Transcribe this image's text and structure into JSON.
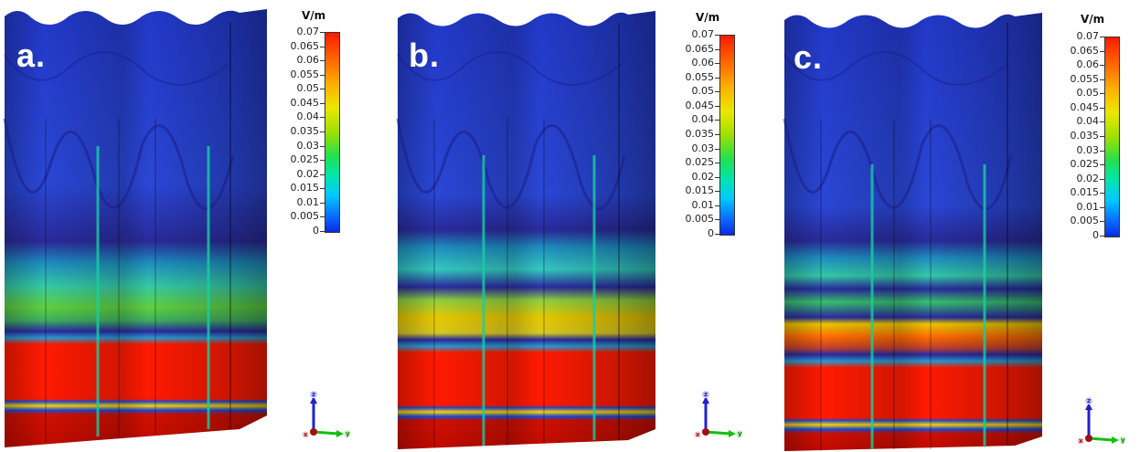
{
  "panels": [
    {
      "label": "a.",
      "unit": "V/m",
      "ticks": [
        "0.07",
        "0.065",
        "0.06",
        "0.055",
        "0.05",
        "0.045",
        "0.04",
        "0.035",
        "0.03",
        "0.025",
        "0.02",
        "0.015",
        "0.01",
        "0.005",
        "0"
      ]
    },
    {
      "label": "b.",
      "unit": "V/m",
      "ticks": [
        "0.07",
        "0.065",
        "0.06",
        "0.055",
        "0.05",
        "0.045",
        "0.04",
        "0.035",
        "0.03",
        "0.025",
        "0.02",
        "0.015",
        "0.01",
        "0.005",
        "0"
      ]
    },
    {
      "label": "c.",
      "unit": "V/m",
      "ticks": [
        "0.07",
        "0.065",
        "0.06",
        "0.055",
        "0.05",
        "0.045",
        "0.04",
        "0.035",
        "0.03",
        "0.025",
        "0.02",
        "0.015",
        "0.01",
        "0.005",
        "0"
      ]
    }
  ],
  "axes": {
    "z": "z",
    "x": "x",
    "y": "y"
  },
  "colors": {
    "low": "#0a2be0",
    "mid": "#22e050",
    "high": "#ff1a00",
    "deep": "#b00000"
  }
}
